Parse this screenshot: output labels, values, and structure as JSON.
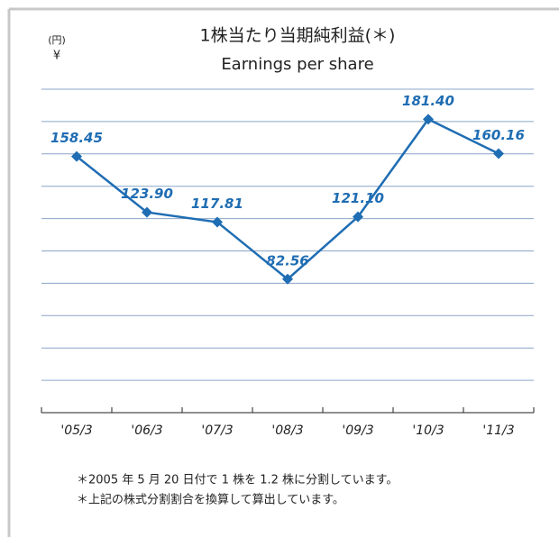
{
  "chart_data": {
    "type": "line",
    "title": "1株当たり当期純利益(＊)",
    "subtitle": "Earnings per share",
    "unit_label": "(円)",
    "unit_symbol": "¥",
    "categories": [
      "'05/3",
      "'06/3",
      "'07/3",
      "'08/3",
      "'09/3",
      "'10/3",
      "'11/3"
    ],
    "values": [
      158.45,
      123.9,
      117.81,
      82.56,
      121.1,
      181.4,
      160.16
    ],
    "value_labels": [
      "158.45",
      "123.90",
      "117.81",
      "82.56",
      "121.10",
      "181.40",
      "160.16"
    ],
    "color": "#1f6db3",
    "ylim": [
      0,
      200
    ],
    "yticks": [
      0,
      20,
      40,
      60,
      80,
      100,
      120,
      140,
      160,
      180,
      200
    ],
    "grid": true,
    "notes": [
      "＊2005 年 5 月 20 日付で 1 株を 1.2 株に分割しています。",
      "＊上記の株式分割割合を換算して算出しています。"
    ]
  }
}
